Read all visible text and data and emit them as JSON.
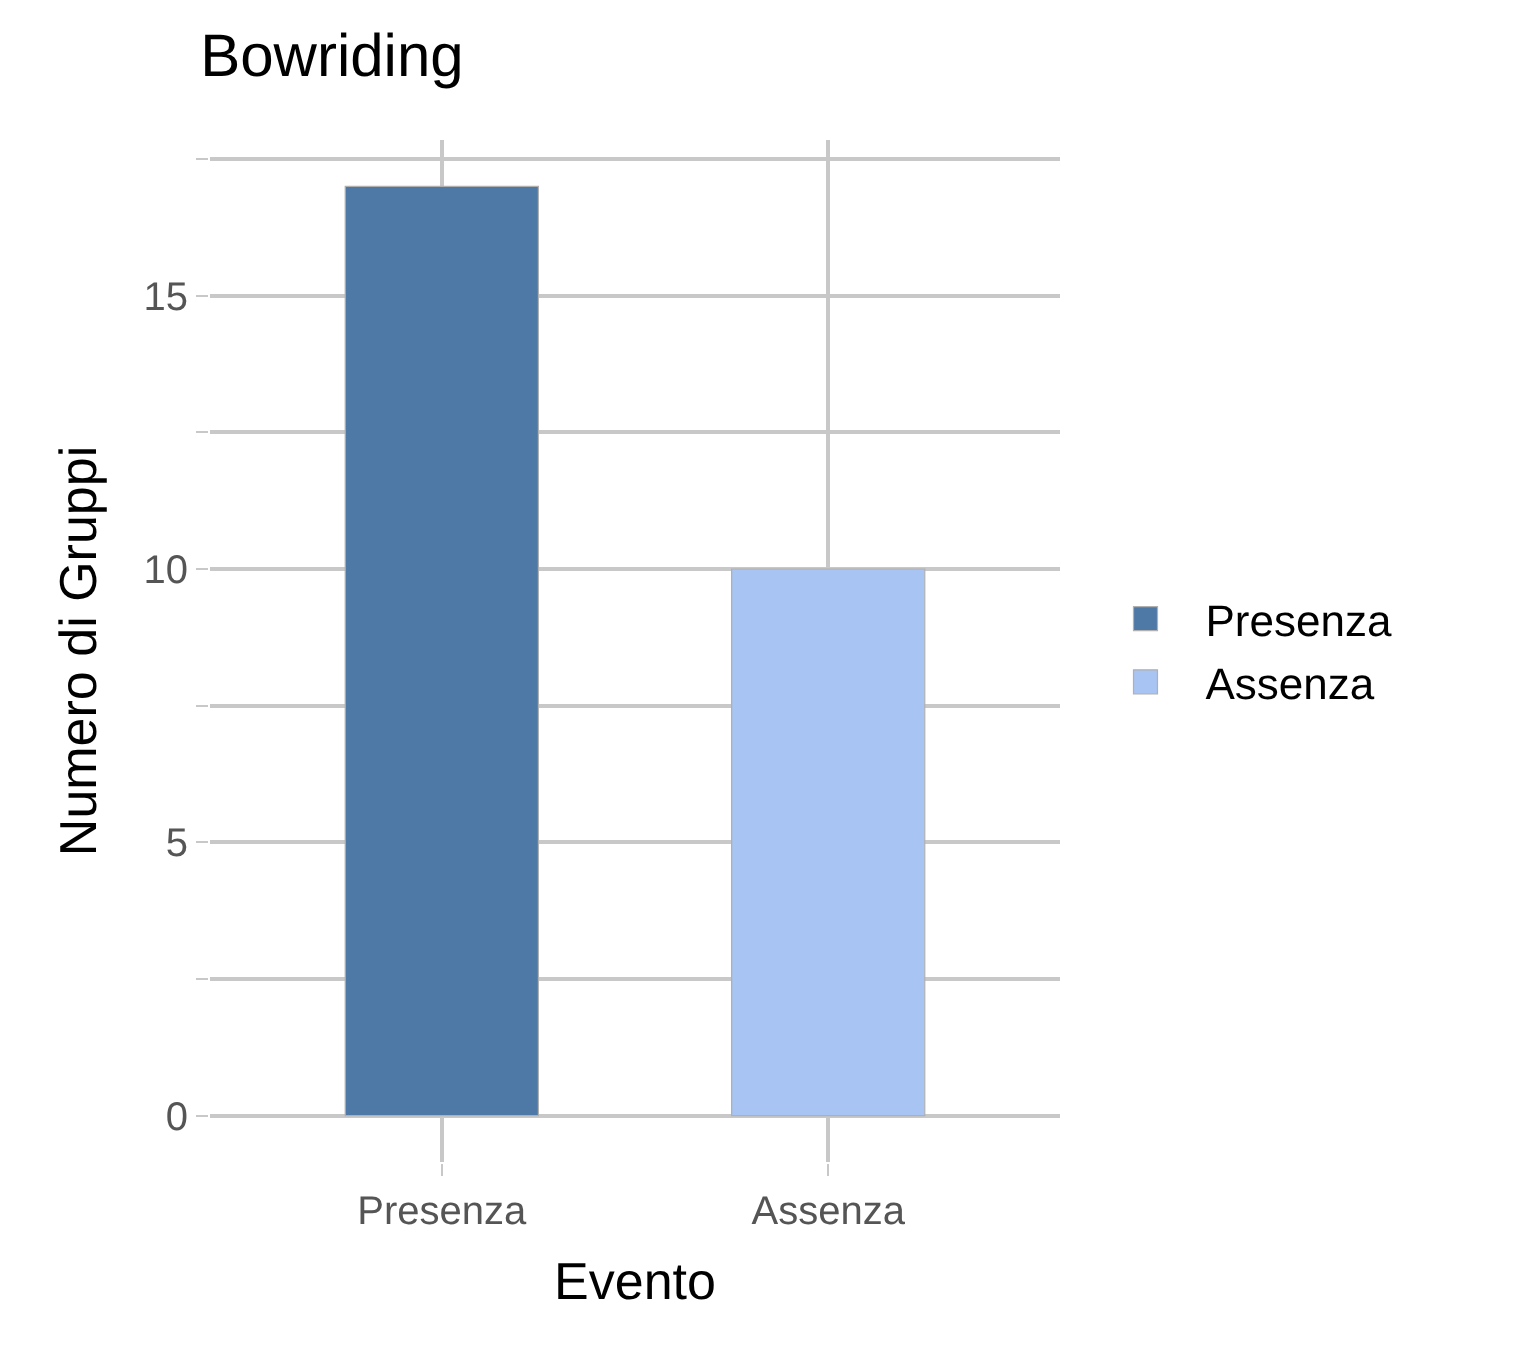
{
  "chart_data": {
    "type": "bar",
    "title": "Bowriding",
    "xlabel": "Evento",
    "ylabel": "Numero di Gruppi",
    "categories": [
      "Presenza",
      "Assenza"
    ],
    "series": [
      {
        "name": "Presenza",
        "color": "#4e79a7",
        "values": [
          17,
          null
        ]
      },
      {
        "name": "Assenza",
        "color": "#a7c4f2",
        "values": [
          null,
          10
        ]
      }
    ],
    "ylim": [
      -0.85,
      17.85
    ],
    "yticks": [
      0,
      {
        "value": 2.5,
        "label": null
      },
      5,
      {
        "value": 7.5,
        "label": null
      },
      10,
      {
        "value": 12.5,
        "label": null
      },
      15,
      {
        "value": 17.5,
        "label": null
      }
    ],
    "grid": true,
    "legend": "right"
  }
}
